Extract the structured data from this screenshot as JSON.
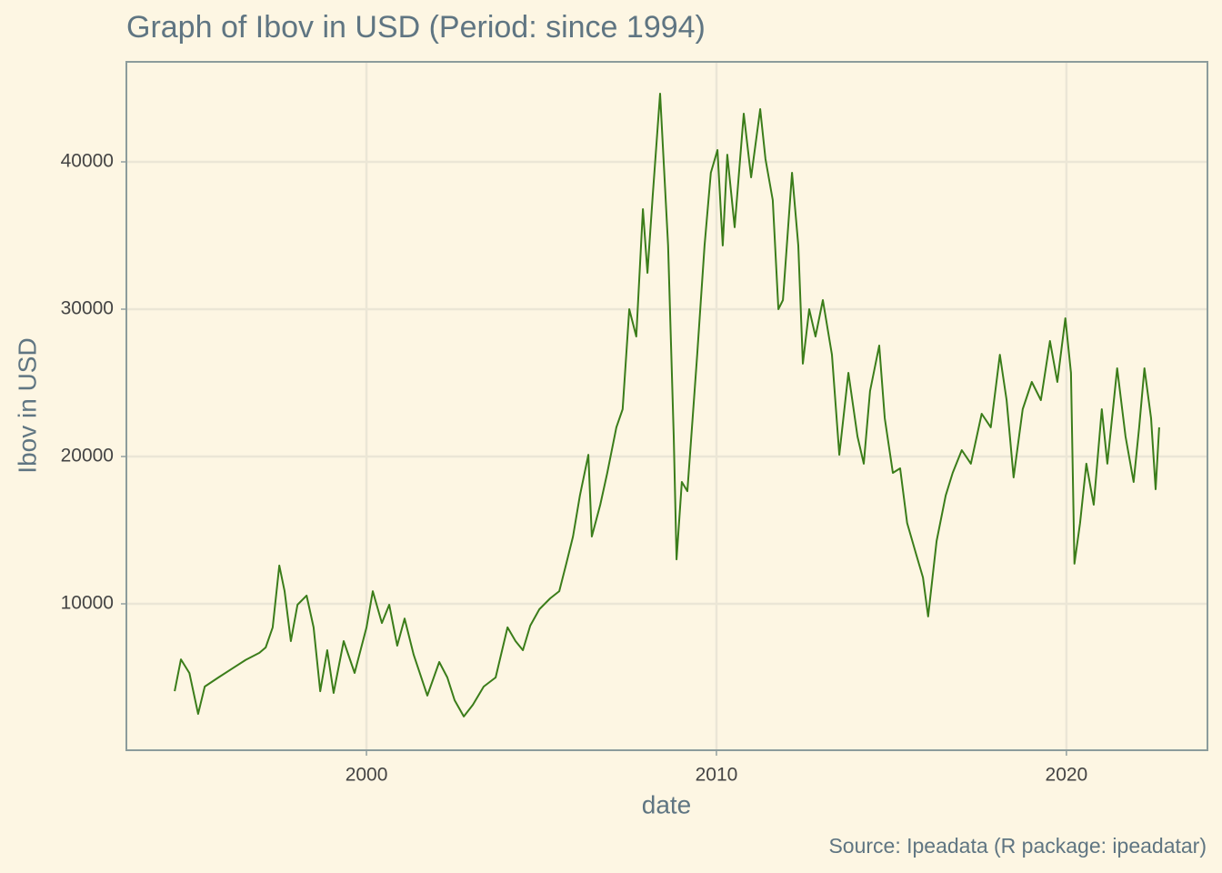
{
  "chart_data": {
    "type": "line",
    "title": "Graph of Ibov in USD (Period: since 1994)",
    "x_label": "date",
    "y_label": "Ibov in USD",
    "caption": "Source: Ipeadata (R package: ipeadatar)",
    "color": "#3b7d1a",
    "grid": true,
    "x": [
      1994.52,
      1994.7,
      1994.94,
      1995.19,
      1995.38,
      1995.77,
      1996.16,
      1996.55,
      1996.94,
      1997.12,
      1997.32,
      1997.51,
      1997.66,
      1997.84,
      1998.03,
      1998.29,
      1998.49,
      1998.68,
      1998.88,
      1999.06,
      1999.35,
      1999.66,
      2000.0,
      2000.18,
      2000.44,
      2000.65,
      2000.88,
      2001.09,
      2001.35,
      2001.74,
      2002.08,
      2002.31,
      2002.52,
      2002.78,
      2003.04,
      2003.35,
      2003.69,
      2004.03,
      2004.26,
      2004.47,
      2004.68,
      2004.94,
      2005.25,
      2005.51,
      2005.71,
      2005.9,
      2006.1,
      2006.34,
      2006.44,
      2006.68,
      2006.88,
      2007.14,
      2007.32,
      2007.51,
      2007.71,
      2007.9,
      2008.03,
      2008.18,
      2008.39,
      2008.62,
      2008.78,
      2008.86,
      2009.01,
      2009.17,
      2009.45,
      2009.66,
      2009.84,
      2010.03,
      2010.18,
      2010.31,
      2010.52,
      2010.78,
      2010.99,
      2011.25,
      2011.4,
      2011.61,
      2011.77,
      2011.9,
      2012.16,
      2012.34,
      2012.47,
      2012.65,
      2012.83,
      2013.04,
      2013.3,
      2013.51,
      2013.77,
      2014.03,
      2014.21,
      2014.39,
      2014.65,
      2014.81,
      2015.04,
      2015.25,
      2015.45,
      2015.71,
      2015.9,
      2016.05,
      2016.29,
      2016.55,
      2016.75,
      2017.01,
      2017.27,
      2017.58,
      2017.84,
      2018.1,
      2018.29,
      2018.49,
      2018.75,
      2019.01,
      2019.27,
      2019.53,
      2019.74,
      2019.97,
      2020.13,
      2020.23,
      2020.39,
      2020.57,
      2020.78,
      2021.01,
      2021.17,
      2021.45,
      2021.69,
      2021.92,
      2022.08,
      2022.23,
      2022.42,
      2022.55,
      2022.65
    ],
    "values": [
      4070,
      6230,
      5300,
      2530,
      4380,
      5000,
      5600,
      6200,
      6670,
      7040,
      8400,
      12600,
      10860,
      7470,
      9940,
      10560,
      8400,
      4070,
      6850,
      3950,
      7470,
      5310,
      8400,
      10860,
      8700,
      9940,
      7160,
      9000,
      6540,
      3770,
      6050,
      5000,
      3460,
      2350,
      3150,
      4380,
      5000,
      8400,
      7470,
      6850,
      8520,
      9630,
      10370,
      10860,
      12720,
      14570,
      17350,
      20120,
      14570,
      16730,
      18890,
      21980,
      23210,
      30000,
      28150,
      36790,
      32470,
      37720,
      44630,
      34320,
      21360,
      13020,
      18270,
      17650,
      26910,
      34320,
      39260,
      40800,
      34320,
      40490,
      35560,
      43270,
      38950,
      43580,
      40190,
      37410,
      30000,
      30620,
      39260,
      34320,
      26300,
      30000,
      28150,
      30620,
      26910,
      20120,
      25680,
      21360,
      19510,
      24440,
      27530,
      22590,
      18890,
      19200,
      15490,
      13330,
      11790,
      9140,
      14260,
      17350,
      18890,
      20430,
      19510,
      22900,
      21980,
      26910,
      23830,
      18580,
      23210,
      25060,
      23830,
      27840,
      25060,
      29380,
      25680,
      12720,
      15490,
      19510,
      16730,
      23210,
      19510,
      25990,
      21360,
      18270,
      21980,
      25990,
      22590,
      17780,
      21980
    ],
    "xlim": [
      1993.14,
      2024.03
    ],
    "ylim": [
      62,
      46790
    ],
    "xticks": [
      2000,
      2010,
      2020
    ],
    "yticks": [
      10000,
      20000,
      30000,
      40000
    ]
  }
}
